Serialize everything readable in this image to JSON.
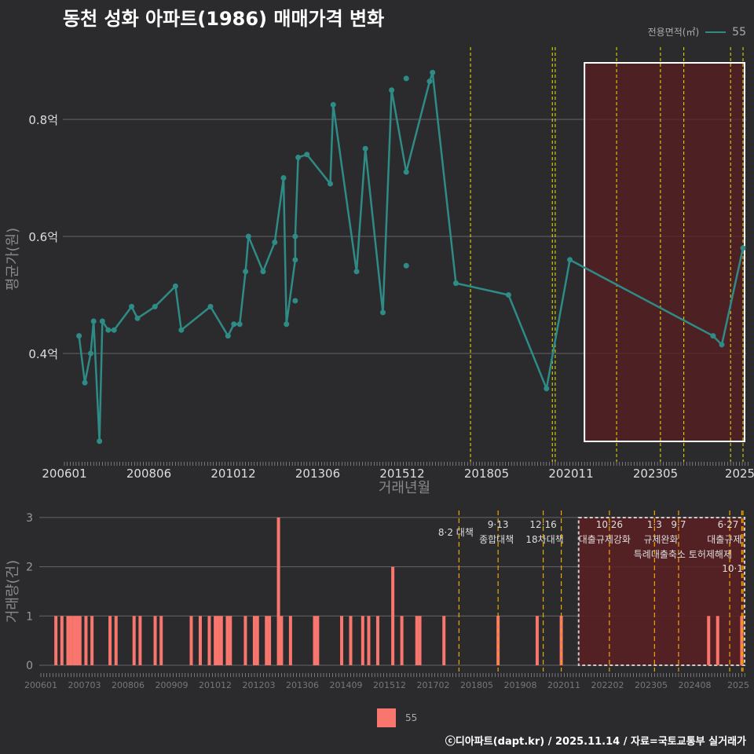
{
  "title": "동천 성화 아파트(1986) 매매가격 변화",
  "legend_title": "전용면적(㎡)",
  "legend_value": "55",
  "footer": "ⓒ디아파트(dapt.kr) / 2025.11.14 / 자료=국토교통부 실거래가",
  "colors": {
    "line": "#2e8b86",
    "bar": "#f8766d",
    "policy_line": "#e6e600",
    "policy_line_bottom": "#f0a500",
    "shade": "#5a1f22"
  },
  "chart_data": [
    {
      "type": "line",
      "title": "동천 성화 아파트(1986) 매매가격 변화",
      "xlabel": "거래년월",
      "ylabel": "평균가(원)",
      "ylim": [
        0.22,
        0.9
      ],
      "yticks": [
        {
          "v": 0.4,
          "label": "0.4억"
        },
        {
          "v": 0.6,
          "label": "0.6억"
        },
        {
          "v": 0.8,
          "label": "0.8억"
        }
      ],
      "xticks": [
        "200601",
        "200806",
        "201012",
        "201306",
        "201512",
        "201805",
        "202011",
        "202305",
        "2025"
      ],
      "series": [
        {
          "name": "55",
          "points": [
            [
              "200606",
              0.43
            ],
            [
              "200608",
              0.35
            ],
            [
              "200610",
              0.4
            ],
            [
              "200611",
              0.455
            ],
            [
              "200701",
              0.25
            ],
            [
              "200702",
              0.455
            ],
            [
              "200704",
              0.44
            ],
            [
              "200706",
              0.44
            ],
            [
              "200712",
              0.48
            ],
            [
              "200802",
              0.46
            ],
            [
              "200808",
              0.48
            ],
            [
              "200903",
              0.515
            ],
            [
              "200905",
              0.44
            ],
            [
              "201003",
              0.48
            ],
            [
              "201009",
              0.43
            ],
            [
              "201011",
              0.45
            ],
            [
              "201101",
              0.45
            ],
            [
              "201103",
              0.54
            ],
            [
              "201104",
              0.6
            ],
            [
              "201109",
              0.54
            ],
            [
              "201201",
              0.59
            ],
            [
              "201204",
              0.7
            ],
            [
              "201205",
              0.45
            ],
            [
              "201208",
              0.56
            ],
            [
              "201208",
              0.6
            ],
            [
              "201209",
              0.735
            ],
            [
              "201212",
              0.74
            ],
            [
              "201308",
              0.69
            ],
            [
              "201309",
              0.825
            ],
            [
              "201405",
              0.54
            ],
            [
              "201408",
              0.75
            ],
            [
              "201502",
              0.47
            ],
            [
              "201505",
              0.85
            ],
            [
              "201510",
              0.71
            ],
            [
              "201606",
              0.865
            ],
            [
              "201607",
              0.88
            ],
            [
              "201703",
              0.52
            ],
            [
              "201809",
              0.5
            ],
            [
              "201910",
              0.34
            ],
            [
              "202006",
              0.56
            ],
            [
              "202407",
              0.43
            ],
            [
              "202410",
              0.415
            ],
            [
              "202506",
              0.58
            ]
          ]
        }
      ],
      "extra_points": [
        [
          "201208",
          0.49
        ],
        [
          "201510",
          0.55
        ],
        [
          "201510",
          0.87
        ]
      ],
      "policy_lines": [
        "201708",
        "202001",
        "201912",
        "202110",
        "202301",
        "202309",
        "202501",
        "202506",
        "202510"
      ],
      "shaded_range": [
        "202011",
        "202510"
      ]
    },
    {
      "type": "bar",
      "ylabel": "거래량(건)",
      "ylim": [
        0,
        3
      ],
      "yticks": [
        0,
        1,
        2,
        3
      ],
      "xticks": [
        "200601",
        "200703",
        "200806",
        "200909",
        "201012",
        "201203",
        "201306",
        "201409",
        "201512",
        "201702",
        "201805",
        "201908",
        "202011",
        "202202",
        "202305",
        "202408",
        "2025"
      ],
      "bars": [
        [
          "200606",
          1
        ],
        [
          "200608",
          1
        ],
        [
          "200610",
          1
        ],
        [
          "200611",
          1
        ],
        [
          "200612",
          1
        ],
        [
          "200701",
          1
        ],
        [
          "200702",
          1
        ],
        [
          "200704",
          1
        ],
        [
          "200706",
          1
        ],
        [
          "200712",
          1
        ],
        [
          "200802",
          1
        ],
        [
          "200808",
          1
        ],
        [
          "200810",
          1
        ],
        [
          "200903",
          1
        ],
        [
          "200905",
          1
        ],
        [
          "201003",
          1
        ],
        [
          "201006",
          1
        ],
        [
          "201009",
          1
        ],
        [
          "201011",
          1
        ],
        [
          "201012",
          1
        ],
        [
          "201101",
          1
        ],
        [
          "201103",
          1
        ],
        [
          "201104",
          1
        ],
        [
          "201109",
          1
        ],
        [
          "201112",
          1
        ],
        [
          "201201",
          1
        ],
        [
          "201204",
          1
        ],
        [
          "201205",
          1
        ],
        [
          "201208",
          3
        ],
        [
          "201209",
          1
        ],
        [
          "201212",
          1
        ],
        [
          "201308",
          1
        ],
        [
          "201309",
          1
        ],
        [
          "201405",
          1
        ],
        [
          "201408",
          1
        ],
        [
          "201412",
          1
        ],
        [
          "201502",
          1
        ],
        [
          "201505",
          1
        ],
        [
          "201510",
          2
        ],
        [
          "201601",
          1
        ],
        [
          "201606",
          1
        ],
        [
          "201607",
          1
        ],
        [
          "201703",
          1
        ],
        [
          "201809",
          1
        ],
        [
          "201910",
          1
        ],
        [
          "202006",
          1
        ],
        [
          "202407",
          1
        ],
        [
          "202410",
          1
        ],
        [
          "202506",
          1
        ]
      ],
      "events": [
        {
          "month": "201708",
          "date": "8·2 대책",
          "name": ""
        },
        {
          "month": "201809",
          "date": "9·13",
          "name": "종합대책"
        },
        {
          "month": "201912",
          "date": "12·16",
          "name": "18차대책"
        },
        {
          "month": "202006",
          "date": "",
          "name": ""
        },
        {
          "month": "202110",
          "date": "10·26",
          "name": "대출규제강화"
        },
        {
          "month": "202301",
          "date": "1·3",
          "name": "규제완화"
        },
        {
          "month": "202309",
          "date": "9·7",
          "name": "특례대출축소 토허제해제"
        },
        {
          "month": "202502",
          "date": "",
          "name": ""
        },
        {
          "month": "202506",
          "date": "6·27",
          "name": "대출규제"
        },
        {
          "month": "202510",
          "date": "10·1",
          "name": ""
        }
      ],
      "shaded_range": [
        "202011",
        "202510"
      ]
    }
  ]
}
